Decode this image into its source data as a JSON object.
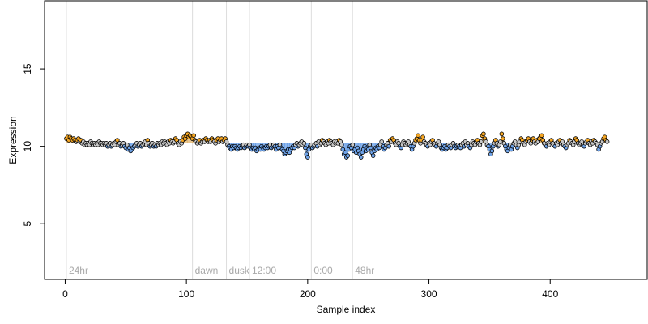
{
  "chart_data": {
    "type": "scatter",
    "title": "",
    "xlabel": "Sample index",
    "ylabel": "Expression",
    "xlim": [
      -17,
      480
    ],
    "ylim": [
      1.4,
      19.4
    ],
    "xticks": [
      0,
      100,
      200,
      300,
      400
    ],
    "yticks": [
      5,
      10,
      15
    ],
    "grid": false,
    "legend": null,
    "colors": {
      "point_stroke": "#000000",
      "point_fill_high": "#f5a623",
      "point_fill_low": "#6fa3e8",
      "point_fill_mid": "#c8c8c8",
      "trend_line": "#e2b774",
      "event_line": "#dcdcdc",
      "event_label": "#a9a9a9"
    },
    "event_markers": [
      {
        "x": 1,
        "label": "24hr"
      },
      {
        "x": 105,
        "label": "dawn"
      },
      {
        "x": 133,
        "label": "dusk"
      },
      {
        "x": 152,
        "label": "12:00"
      },
      {
        "x": 203,
        "label": "0:00"
      },
      {
        "x": 237,
        "label": "48hr"
      }
    ],
    "series": [
      {
        "x_start": 1,
        "x_step": 1,
        "baseline": 10.2,
        "values": [
          10.5,
          10.6,
          10.4,
          10.6,
          10.5,
          10.4,
          10.5,
          10.4,
          10.3,
          10.4,
          10.5,
          10.3,
          10.4,
          10.2,
          10.3,
          10.1,
          10.2,
          10.1,
          10.2,
          10.1,
          10.3,
          10.2,
          10.1,
          10.2,
          10.1,
          10.2,
          10.1,
          10.3,
          10.2,
          10.2,
          10.1,
          10.2,
          10.1,
          10.2,
          10.0,
          10.1,
          10.2,
          10.0,
          10.1,
          10.2,
          10.1,
          10.3,
          10.4,
          10.1,
          10.2,
          10.0,
          10.1,
          10.2,
          10.0,
          9.9,
          10.1,
          9.8,
          9.9,
          9.7,
          9.8,
          9.9,
          10.0,
          10.1,
          10.2,
          10.0,
          10.1,
          10.2,
          10.0,
          10.1,
          10.2,
          10.3,
          10.1,
          10.4,
          10.2,
          10.0,
          10.1,
          10.2,
          10.0,
          10.1,
          10.0,
          10.2,
          10.1,
          10.2,
          10.1,
          10.3,
          10.2,
          10.3,
          10.2,
          10.1,
          10.3,
          10.2,
          10.4,
          10.3,
          10.2,
          10.3,
          10.5,
          10.4,
          10.2,
          10.1,
          10.3,
          10.2,
          10.4,
          10.6,
          10.5,
          10.7,
          10.8,
          10.6,
          10.7,
          10.6,
          10.5,
          10.7,
          10.4,
          10.3,
          10.2,
          10.3,
          10.4,
          10.2,
          10.3,
          10.4,
          10.3,
          10.5,
          10.4,
          10.3,
          10.4,
          10.3,
          10.5,
          10.4,
          10.3,
          10.2,
          10.4,
          10.5,
          10.3,
          10.4,
          10.5,
          10.3,
          10.4,
          10.5,
          10.3,
          10.1,
          10.0,
          9.9,
          9.8,
          10.0,
          9.9,
          10.0,
          9.9,
          9.8,
          9.9,
          10.0,
          9.9,
          10.0,
          10.1,
          9.9,
          10.0,
          10.1,
          10.0,
          10.1,
          9.9,
          9.8,
          9.9,
          9.8,
          9.9,
          9.7,
          9.8,
          9.9,
          9.8,
          10.0,
          9.9,
          9.8,
          9.9,
          10.0,
          9.9,
          10.0,
          10.1,
          9.9,
          10.0,
          10.1,
          10.0,
          9.8,
          10.0,
          9.9,
          10.1,
          9.9,
          9.8,
          9.7,
          9.5,
          9.6,
          9.7,
          9.8,
          9.6,
          9.8,
          9.9,
          10.0,
          9.9,
          10.1,
          10.2,
          10.0,
          10.1,
          10.2,
          10.3,
          10.1,
          10.2,
          9.9,
          9.5,
          9.3,
          9.8,
          10.0,
          10.1,
          9.9,
          10.0,
          10.1,
          10.2,
          10.0,
          10.3,
          10.1,
          10.2,
          10.4,
          10.3,
          10.2,
          10.1,
          10.3,
          10.2,
          10.4,
          10.3,
          10.2,
          10.1,
          10.3,
          10.2,
          10.3,
          10.2,
          10.4,
          10.3,
          10.1,
          9.8,
          9.5,
          9.6,
          9.3,
          9.4,
          9.8,
          10.0,
          9.9,
          10.1,
          9.7,
          9.8,
          9.6,
          9.9,
          9.7,
          9.5,
          9.3,
          9.6,
          9.8,
          10.0,
          9.7,
          9.9,
          9.8,
          10.1,
          9.9,
          9.6,
          9.4,
          9.7,
          9.9,
          9.8,
          10.0,
          9.9,
          10.1,
          10.3,
          10.0,
          9.8,
          9.9,
          10.1,
          10.2,
          10.0,
          10.4,
          10.3,
          10.5,
          10.4,
          10.2,
          10.1,
          10.3,
          10.2,
          10.0,
          9.9,
          10.1,
          10.3,
          10.2,
          10.1,
          10.2,
          10.3,
          10.1,
          10.0,
          9.8,
          10.0,
          10.2,
          10.4,
          10.5,
          10.7,
          10.4,
          10.2,
          10.4,
          10.6,
          10.3,
          10.2,
          10.1,
          10.0,
          10.2,
          10.1,
          10.3,
          10.4,
          10.2,
          10.1,
          10.0,
          10.2,
          10.3,
          10.1,
          9.9,
          9.8,
          9.9,
          10.0,
          9.8,
          9.9,
          10.1,
          10.0,
          9.9,
          10.1,
          10.2,
          10.0,
          9.9,
          10.0,
          10.1,
          10.0,
          9.9,
          10.1,
          10.2,
          10.0,
          10.3,
          10.1,
          10.2,
          10.0,
          9.9,
          10.1,
          10.3,
          10.2,
          10.1,
          10.3,
          10.4,
          10.2,
          10.1,
          10.3,
          10.7,
          10.8,
          10.5,
          10.3,
          10.1,
          10.0,
          9.8,
          9.5,
          9.7,
          10.0,
          10.2,
          10.4,
          10.2,
          10.0,
          10.1,
          10.3,
          10.8,
          10.5,
          10.2,
          10.0,
          9.8,
          9.7,
          9.9,
          10.1,
          9.8,
          10.0,
          10.2,
          10.3,
          10.1,
          9.9,
          10.1,
          10.3,
          10.5,
          10.4,
          10.2,
          10.1,
          10.3,
          10.4,
          10.5,
          10.3,
          10.2,
          10.4,
          10.5,
          10.3,
          10.2,
          10.4,
          10.3,
          10.5,
          10.6,
          10.7,
          10.4,
          10.2,
          10.1,
          10.0,
          10.2,
          10.1,
          10.3,
          10.4,
          10.2,
          10.1,
          10.0,
          10.2,
          10.1,
          10.3,
          10.4,
          10.2,
          10.3,
          10.1,
          10.0,
          9.9,
          10.1,
          10.2,
          10.4,
          10.3,
          10.2,
          10.1,
          10.3,
          10.5,
          10.4,
          10.2,
          10.1,
          10.2,
          10.3,
          10.1,
          10.0,
          10.2,
          10.3,
          10.4,
          10.2,
          10.1,
          10.3,
          10.2,
          10.4,
          10.3,
          10.2,
          10.1,
          9.8,
          10.0,
          10.2,
          10.3,
          10.5,
          10.6,
          10.4,
          10.3
        ]
      }
    ]
  }
}
